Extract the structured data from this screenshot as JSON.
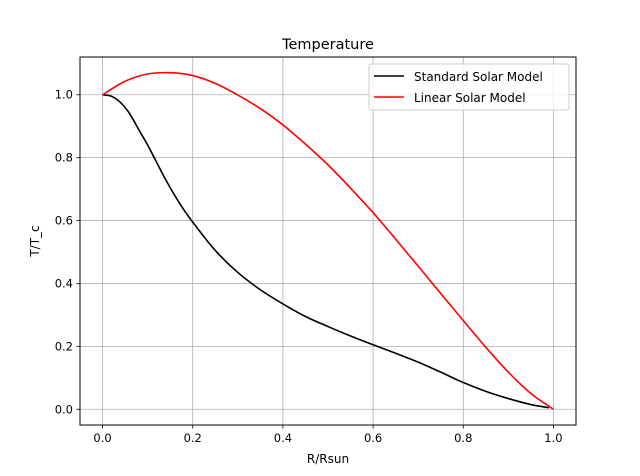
{
  "chart_data": {
    "type": "line",
    "title": "Temperature",
    "xlabel": "R/Rsun",
    "ylabel": "T/T_c",
    "xlim": [
      -0.05,
      1.05
    ],
    "ylim": [
      -0.05,
      1.12
    ],
    "grid": true,
    "legend_position": "top-right",
    "x_ticks": [
      "0.0",
      "0.2",
      "0.4",
      "0.6",
      "0.8",
      "1.0"
    ],
    "y_ticks": [
      "0.0",
      "0.2",
      "0.4",
      "0.6",
      "0.8",
      "1.0"
    ],
    "series": [
      {
        "name": "Standard Solar Model",
        "color": "#000000",
        "x": [
          0.0,
          0.02,
          0.04,
          0.06,
          0.08,
          0.1,
          0.12,
          0.14,
          0.16,
          0.18,
          0.2,
          0.25,
          0.3,
          0.35,
          0.4,
          0.45,
          0.5,
          0.55,
          0.6,
          0.65,
          0.7,
          0.75,
          0.8,
          0.85,
          0.9,
          0.95,
          0.99
        ],
        "y": [
          1.0,
          0.995,
          0.975,
          0.94,
          0.89,
          0.84,
          0.785,
          0.73,
          0.68,
          0.635,
          0.595,
          0.505,
          0.435,
          0.38,
          0.335,
          0.295,
          0.263,
          0.233,
          0.205,
          0.178,
          0.15,
          0.118,
          0.085,
          0.057,
          0.034,
          0.015,
          0.005
        ]
      },
      {
        "name": "Linear Solar Model",
        "color": "#ff0000",
        "x": [
          0.0,
          0.05,
          0.1,
          0.15,
          0.2,
          0.25,
          0.3,
          0.35,
          0.4,
          0.45,
          0.5,
          0.55,
          0.6,
          0.65,
          0.7,
          0.75,
          0.8,
          0.85,
          0.9,
          0.95,
          1.0
        ],
        "y": [
          1.0,
          1.043,
          1.066,
          1.07,
          1.061,
          1.036,
          0.999,
          0.956,
          0.904,
          0.843,
          0.777,
          0.703,
          0.625,
          0.541,
          0.455,
          0.368,
          0.282,
          0.197,
          0.118,
          0.05,
          0.0
        ]
      }
    ]
  }
}
